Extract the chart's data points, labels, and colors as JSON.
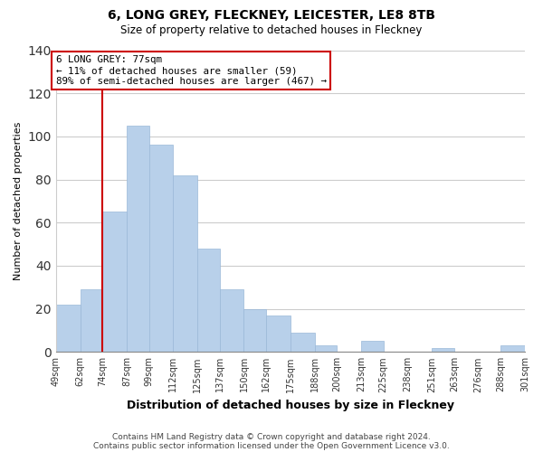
{
  "title": "6, LONG GREY, FLECKNEY, LEICESTER, LE8 8TB",
  "subtitle": "Size of property relative to detached houses in Fleckney",
  "xlabel": "Distribution of detached houses by size in Fleckney",
  "ylabel": "Number of detached properties",
  "bar_color": "#b8d0ea",
  "bar_edge_color": "#9ab8d8",
  "bins": [
    49,
    62,
    74,
    87,
    99,
    112,
    125,
    137,
    150,
    162,
    175,
    188,
    200,
    213,
    225,
    238,
    251,
    263,
    276,
    288,
    301
  ],
  "values": [
    22,
    29,
    65,
    105,
    96,
    82,
    48,
    29,
    20,
    17,
    9,
    3,
    0,
    5,
    0,
    0,
    2,
    0,
    0,
    3
  ],
  "tick_labels": [
    "49sqm",
    "62sqm",
    "74sqm",
    "87sqm",
    "99sqm",
    "112sqm",
    "125sqm",
    "137sqm",
    "150sqm",
    "162sqm",
    "175sqm",
    "188sqm",
    "200sqm",
    "213sqm",
    "225sqm",
    "238sqm",
    "251sqm",
    "263sqm",
    "276sqm",
    "288sqm",
    "301sqm"
  ],
  "vline_x": 74,
  "vline_color": "#cc0000",
  "ylim": [
    0,
    140
  ],
  "yticks": [
    0,
    20,
    40,
    60,
    80,
    100,
    120,
    140
  ],
  "annotation_line1": "6 LONG GREY: 77sqm",
  "annotation_line2": "← 11% of detached houses are smaller (59)",
  "annotation_line3": "89% of semi-detached houses are larger (467) →",
  "annotation_box_edge": "#cc0000",
  "footer1": "Contains HM Land Registry data © Crown copyright and database right 2024.",
  "footer2": "Contains public sector information licensed under the Open Government Licence v3.0.",
  "background_color": "#ffffff",
  "grid_color": "#cccccc"
}
